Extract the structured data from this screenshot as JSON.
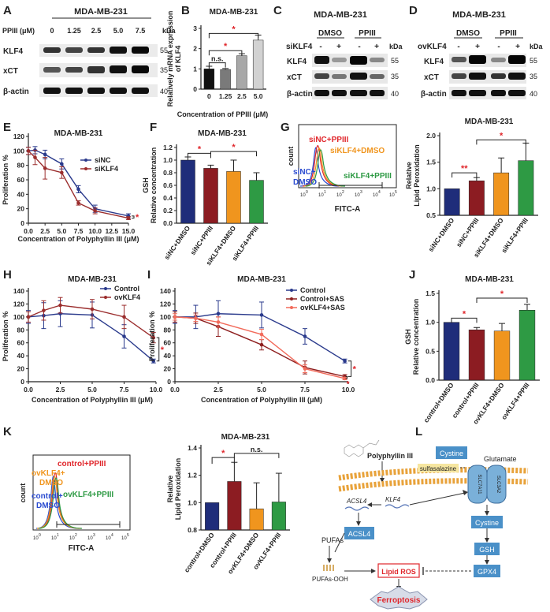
{
  "panel_letters": [
    "A",
    "B",
    "C",
    "D",
    "E",
    "F",
    "G",
    "H",
    "I",
    "J",
    "K",
    "L"
  ],
  "common": {
    "cell_line": "MDA-MB-231",
    "kda": "kDa",
    "beta_actin": "β-actin",
    "klf4": "KLF4",
    "xct": "xCT",
    "dmso": "DMSO",
    "ppiii": "PPIII",
    "minus": "-",
    "plus": "+"
  },
  "panel_a": {
    "treatment_label": "PPIII (μM)",
    "doses": [
      "0",
      "1.25",
      "2.5",
      "5.0",
      "7.5"
    ],
    "markers": [
      "55",
      "35",
      "40"
    ]
  },
  "panel_b": {
    "ns": "n.s.",
    "star": "*"
  },
  "panel_c": {
    "row_label": "siKLF4"
  },
  "panel_d": {
    "row_label": "ovKLF4"
  },
  "panel_g": {
    "x_label": "FITC-A",
    "y_label": "count",
    "labels": [
      "siNC+PPIII",
      "siKLF4+DMSO",
      "siNC+",
      "DMSO",
      "siKLF4+PPIII"
    ],
    "x_ticks": [
      "10",
      "10",
      "10",
      "10",
      "10",
      "10"
    ],
    "x_exp": [
      "0",
      "1",
      "2",
      "3",
      "4",
      "5"
    ]
  },
  "panel_k": {
    "x_label": "FITC-A",
    "y_label": "count",
    "labels": [
      "control+PPIII",
      "ovKLF4+",
      "DMSO",
      "control+",
      "DMSO",
      "ovKLF4+PPIII"
    ],
    "x_ticks": [
      "10",
      "10",
      "10",
      "10",
      "10",
      "10"
    ],
    "x_exp": [
      "0",
      "1",
      "2",
      "3",
      "4",
      "5"
    ]
  },
  "panel_l": {
    "labels": [
      "Polyphyllin III",
      "Cystine",
      "Glutamate",
      "sulfasalazine",
      "SLC7A11",
      "SLC3A2",
      "ACSL4",
      "KLF4",
      "Cystine",
      "ACSL4",
      "PUFAs",
      "GSH",
      "PUFAs-OOH",
      "Lipid ROS",
      "GPX4",
      "Ferroptosis"
    ]
  },
  "chart_data": [
    {
      "id": "B",
      "type": "bar",
      "title": "MDA-MB-231",
      "categories": [
        "0",
        "1.25",
        "2.5",
        "5.0"
      ],
      "values": [
        1.0,
        0.97,
        1.65,
        2.42
      ],
      "errors": [
        0.13,
        0.05,
        0.1,
        0.25
      ],
      "colors": [
        "#111111",
        "#7a7a7a",
        "#a8a8a8",
        "#d2d2d2"
      ],
      "xlabel": "Concentration of PPIII (μM)",
      "ylabel": "Relatively mRNA expression of KLF4",
      "ylim": [
        0,
        3
      ],
      "yticks": [
        "0",
        "1",
        "2",
        "3"
      ]
    },
    {
      "id": "E",
      "type": "line",
      "title": "MDA-MB-231",
      "xlabel": "Concentration of Polyphyllin III (μM)",
      "ylabel": "Proliferation %",
      "xlim": [
        0,
        15
      ],
      "ylim": [
        0,
        120
      ],
      "xticks": [
        "0.0",
        "2.5",
        "5.0",
        "7.5",
        "10.0",
        "12.5",
        "15.0"
      ],
      "yticks": [
        "0",
        "20",
        "40",
        "60",
        "80",
        "100",
        "120"
      ],
      "x": [
        0,
        1,
        2.5,
        5,
        7.5,
        10,
        15
      ],
      "series": [
        {
          "name": "siNC",
          "color": "#2a3a8c",
          "values": [
            100,
            101,
            95,
            82,
            47,
            20,
            10
          ],
          "errors": [
            5,
            5,
            6,
            7,
            5,
            5,
            3
          ]
        },
        {
          "name": "siKLF4",
          "color": "#9b2d2d",
          "values": [
            100,
            91,
            76,
            70,
            28,
            17,
            7
          ],
          "errors": [
            5,
            10,
            15,
            8,
            3,
            4,
            2
          ]
        }
      ],
      "sig": "*"
    },
    {
      "id": "F",
      "type": "bar",
      "title": "MDA-MB-231",
      "categories": [
        "siNC+DMSO",
        "siNC+PPIII",
        "siKLF4+DMSO",
        "siKLF4+PPIII"
      ],
      "values": [
        1.0,
        0.87,
        0.82,
        0.68
      ],
      "errors": [
        0.05,
        0.05,
        0.18,
        0.12
      ],
      "colors": [
        "#1f2d7a",
        "#8c1c22",
        "#f0951e",
        "#2e9a44"
      ],
      "ylabel": "GSH Relative concentration",
      "ylim": [
        0,
        1.2
      ],
      "yticks": [
        "0.0",
        "0.2",
        "0.4",
        "0.6",
        "0.8",
        "1.0",
        "1.2"
      ],
      "sig": [
        "*",
        "*"
      ]
    },
    {
      "id": "G-bars",
      "type": "bar",
      "title": "MDA-MB-231",
      "categories": [
        "siNC+DMSO",
        "siNC+PPIII",
        "siKLF4+DMSO",
        "siKLF4+PPIII"
      ],
      "values": [
        1.0,
        1.15,
        1.3,
        1.53
      ],
      "errors": [
        0,
        0.06,
        0.28,
        0.33
      ],
      "colors": [
        "#1f2d7a",
        "#8c1c22",
        "#f0951e",
        "#2e9a44"
      ],
      "ylabel": "Relative Lipid Peroxidation",
      "ylim": [
        0.5,
        2.0
      ],
      "yticks": [
        "0.5",
        "1.0",
        "1.5",
        "2.0"
      ],
      "sig": [
        "**",
        "*"
      ]
    },
    {
      "id": "H",
      "type": "line",
      "title": "MDA-MB-231",
      "xlabel": "Concentration of Polyphyllin III (μM)",
      "ylabel": "Proliferation %",
      "xlim": [
        0,
        10
      ],
      "ylim": [
        0,
        140
      ],
      "xticks": [
        "0.0",
        "2.5",
        "5.0",
        "7.5",
        "10.0"
      ],
      "yticks": [
        "0",
        "20",
        "40",
        "60",
        "80",
        "100",
        "120",
        "140"
      ],
      "x": [
        0,
        1.2,
        2.5,
        5,
        7.5,
        9.8
      ],
      "series": [
        {
          "name": "Control",
          "color": "#2a3a8c",
          "values": [
            100,
            102,
            105,
            103,
            70,
            32
          ],
          "errors": [
            10,
            20,
            20,
            20,
            18,
            3
          ]
        },
        {
          "name": "ovKLF4",
          "color": "#9b2d2d",
          "values": [
            100,
            110,
            118,
            112,
            100,
            68
          ],
          "errors": [
            8,
            15,
            12,
            15,
            18,
            8
          ]
        }
      ],
      "sig": "*"
    },
    {
      "id": "I",
      "type": "line",
      "title": "MDA-MB-231",
      "xlabel": "Concentration of Polyphyllin III (μM)",
      "ylabel": "Proliferation %",
      "xlim": [
        0,
        10
      ],
      "ylim": [
        0,
        140
      ],
      "xticks": [
        "0.0",
        "2.5",
        "5.0",
        "7.5",
        "10.0"
      ],
      "yticks": [
        "0",
        "20",
        "40",
        "60",
        "80",
        "100",
        "120",
        "140"
      ],
      "x": [
        0,
        1.2,
        2.5,
        5,
        7.5,
        9.8
      ],
      "series": [
        {
          "name": "Control",
          "color": "#2a3a8c",
          "values": [
            100,
            100,
            105,
            103,
            70,
            32
          ],
          "errors": [
            10,
            18,
            20,
            20,
            12,
            3
          ]
        },
        {
          "name": "Control+SAS",
          "color": "#8e1f1f",
          "values": [
            100,
            98,
            85,
            57,
            22,
            8
          ],
          "errors": [
            8,
            8,
            15,
            8,
            10,
            3
          ]
        },
        {
          "name": "ovKLF4+SAS",
          "color": "#f26b5b",
          "values": [
            100,
            98,
            92,
            73,
            20,
            5
          ],
          "errors": [
            5,
            5,
            8,
            8,
            6,
            2
          ]
        }
      ],
      "sig": [
        "*",
        "*"
      ]
    },
    {
      "id": "J",
      "type": "bar",
      "title": "MDA-MB-231",
      "categories": [
        "control+DMSO",
        "control+PPIII",
        "ovKLF4+DMSO",
        "ovKLF4+PPIII"
      ],
      "values": [
        1.0,
        0.87,
        0.85,
        1.21
      ],
      "errors": [
        0,
        0.04,
        0.13,
        0.1
      ],
      "colors": [
        "#1f2d7a",
        "#8c1c22",
        "#f0951e",
        "#2e9a44"
      ],
      "ylabel": "GSH Relative concentration",
      "ylim": [
        0,
        1.5
      ],
      "yticks": [
        "0.0",
        "0.5",
        "1.0",
        "1.5"
      ],
      "sig": [
        "*",
        "*"
      ]
    },
    {
      "id": "K-bars",
      "type": "bar",
      "title": "MDA-MB-231",
      "categories": [
        "control+DMSO",
        "control+PPIII",
        "ovKLF4+DMSO",
        "ovKLF4+PPIII"
      ],
      "values": [
        1.0,
        1.155,
        0.955,
        1.005
      ],
      "errors": [
        0,
        0.14,
        0.19,
        0.21
      ],
      "colors": [
        "#1f2d7a",
        "#8c1c22",
        "#f0951e",
        "#2e9a44"
      ],
      "ylabel": "Relative Lipid Peroxidation",
      "ylim": [
        0.8,
        1.4
      ],
      "yticks": [
        "0.8",
        "1.0",
        "1.2",
        "1.4"
      ],
      "sig": [
        "*",
        "n.s."
      ]
    }
  ]
}
